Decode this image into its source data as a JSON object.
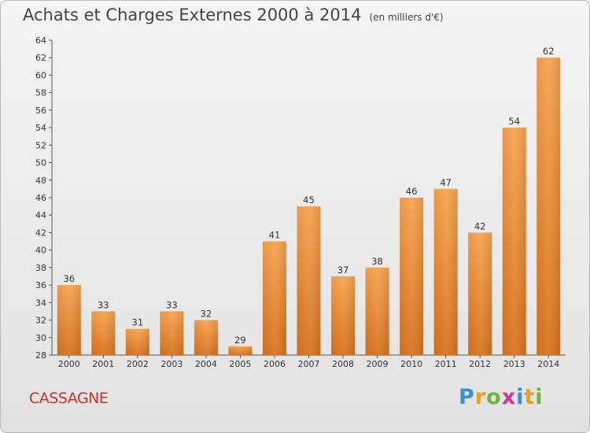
{
  "header": {
    "title": "Achats et Charges Externes 2000 à 2014",
    "unit": "(en milliers d'€)"
  },
  "footer": {
    "town": "CASSAGNE",
    "brand_letters": [
      "P",
      "r",
      "o",
      "x",
      "i",
      "t",
      "i"
    ],
    "brand_colors": [
      "#3b8ed8",
      "#e8a019",
      "#6db33f",
      "#d23a8f",
      "#3b8ed8",
      "#e8a019",
      "#6db33f"
    ]
  },
  "chart_data": {
    "type": "bar",
    "title": "Achats et Charges Externes 2000 à 2014",
    "subtitle": "(en milliers d'€)",
    "xlabel": "",
    "ylabel": "",
    "categories": [
      "2000",
      "2001",
      "2002",
      "2003",
      "2004",
      "2005",
      "2006",
      "2007",
      "2008",
      "2009",
      "2010",
      "2011",
      "2012",
      "2013",
      "2014"
    ],
    "values": [
      36,
      33,
      31,
      33,
      32,
      29,
      41,
      45,
      37,
      38,
      46,
      47,
      42,
      54,
      62
    ],
    "ylim": [
      28,
      64
    ],
    "ytick_step": 2,
    "grid": false,
    "bar_color_top": "#f7a34e",
    "bar_color_bottom": "#d9731f"
  }
}
